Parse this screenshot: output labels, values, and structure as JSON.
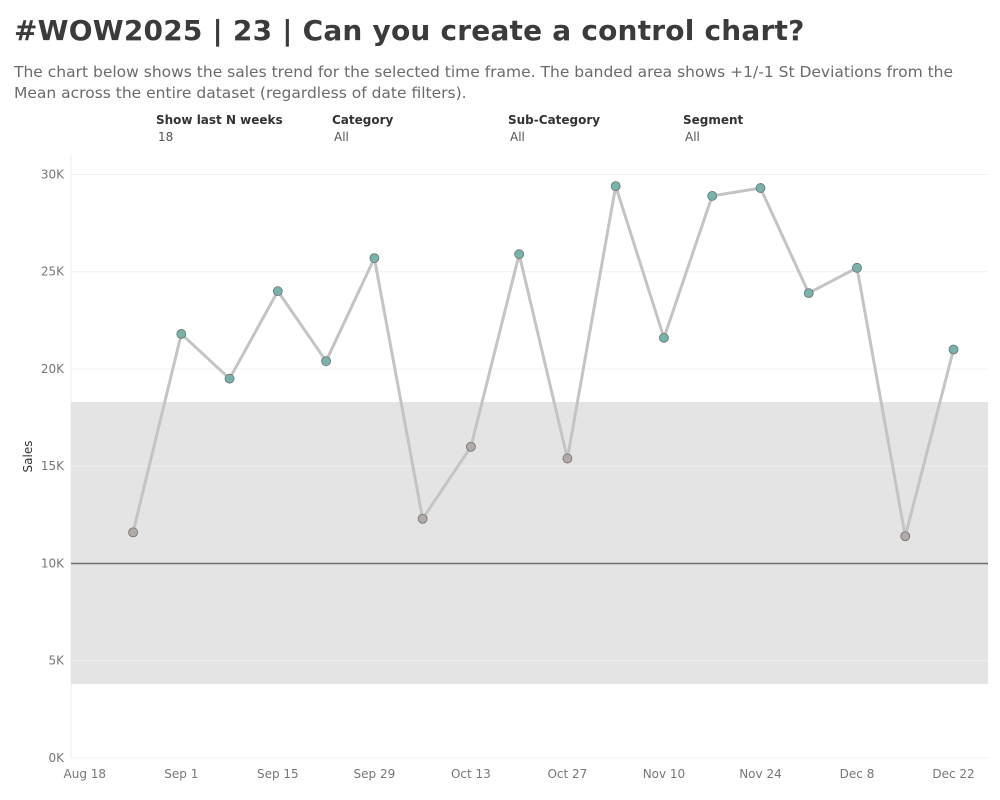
{
  "header": {
    "title": "#WOW2025 | 23 | Can you create a control chart?",
    "subtitle": "The chart below shows the sales trend for the selected time frame. The banded area shows +1/-1 St Deviations from the Mean across the entire dataset (regardless of date filters)."
  },
  "filters": [
    {
      "label": "Show last N weeks",
      "value": "18"
    },
    {
      "label": "Category",
      "value": "All"
    },
    {
      "label": "Sub-Category",
      "value": "All"
    },
    {
      "label": "Segment",
      "value": "All"
    }
  ],
  "colors": {
    "inside_band": "#b2aaa6",
    "outside_band": "#76b3aa",
    "line": "#c4c4c4",
    "band": "#e4e4e4",
    "mean_line": "#6e6e6e"
  },
  "chart_data": {
    "type": "line",
    "xlabel": "",
    "ylabel": "Sales",
    "x": [
      "2024-08-25",
      "2024-09-01",
      "2024-09-08",
      "2024-09-15",
      "2024-09-22",
      "2024-09-29",
      "2024-10-06",
      "2024-10-13",
      "2024-10-20",
      "2024-10-27",
      "2024-11-03",
      "2024-11-10",
      "2024-11-17",
      "2024-11-24",
      "2024-12-01",
      "2024-12-08",
      "2024-12-15",
      "2024-12-22"
    ],
    "x_tick_labels": [
      "Aug 18",
      "Sep 1",
      "Sep 15",
      "Sep 29",
      "Oct 13",
      "Oct 27",
      "Nov 10",
      "Nov 24",
      "Dec 8",
      "Dec 22"
    ],
    "x_tick_dates": [
      "2024-08-18",
      "2024-09-01",
      "2024-09-15",
      "2024-09-29",
      "2024-10-13",
      "2024-10-27",
      "2024-11-10",
      "2024-11-24",
      "2024-12-08",
      "2024-12-22"
    ],
    "xlim": [
      "2024-08-16",
      "2024-12-27"
    ],
    "series": [
      {
        "values": [
          11600,
          21800,
          19500,
          24000,
          20400,
          25700,
          12300,
          16000,
          25900,
          15400,
          29400,
          21600,
          28900,
          29300,
          23900,
          25200,
          11400,
          21000
        ]
      }
    ],
    "mean": 10000,
    "band": [
      3800,
      18300
    ],
    "ylim": [
      0,
      31000
    ],
    "yticks": [
      0,
      5000,
      10000,
      15000,
      20000,
      25000,
      30000
    ],
    "ytick_labels": [
      "0K",
      "5K",
      "10K",
      "15K",
      "20K",
      "25K",
      "30K"
    ],
    "grid": true
  }
}
